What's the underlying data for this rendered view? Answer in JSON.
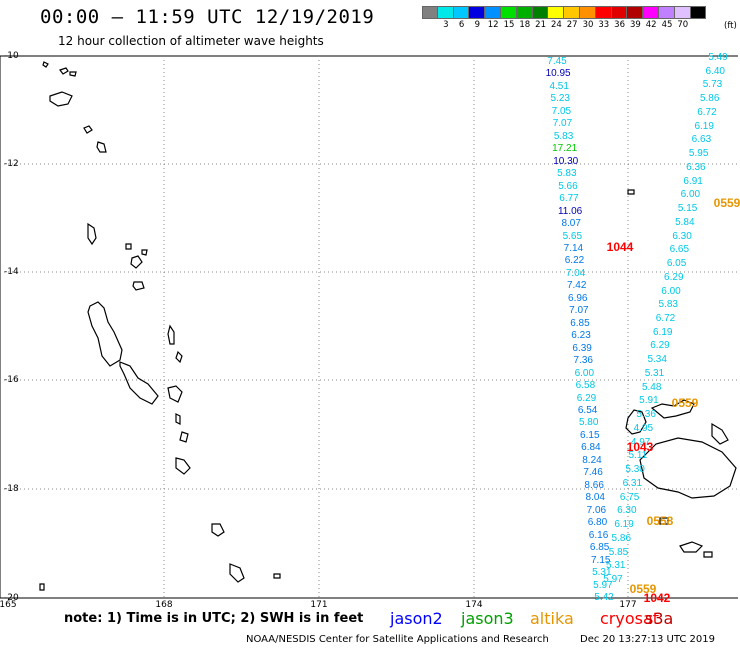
{
  "title": "00:00 — 11:59 UTC 12/19/2019",
  "subtitle": "12 hour collection of altimeter wave heights",
  "scale": {
    "colors": [
      "#808080",
      "#00e8e8",
      "#00c8ff",
      "#0000e0",
      "#0090ff",
      "#00e000",
      "#00b000",
      "#008000",
      "#ffff00",
      "#ffc800",
      "#ff9000",
      "#ff0000",
      "#e00000",
      "#b00000",
      "#ff00ff",
      "#c080ff",
      "#e0c0ff",
      "#000000"
    ],
    "ticks": [
      "3",
      "6",
      "9",
      "12",
      "15",
      "18",
      "21",
      "24",
      "27",
      "30",
      "33",
      "36",
      "39",
      "42",
      "45",
      "70"
    ],
    "unit": "(ft)"
  },
  "map": {
    "lat_labels": [
      "-10",
      "-12",
      "-14",
      "-16",
      "-18",
      "-20"
    ],
    "lon_labels": [
      "165",
      "168",
      "171",
      "174",
      "177"
    ],
    "land": "#000000"
  },
  "wave_colors": {
    "c": "#00c8e6",
    "b": "#0078e6",
    "n": "#0000b4",
    "g": "#00c800"
  },
  "wave_heights": {
    "track1": [
      [
        "7.45",
        "c"
      ],
      [
        "10.95",
        "n"
      ],
      [
        "4.51",
        "c"
      ],
      [
        "5.23",
        "c"
      ],
      [
        "7.05",
        "c"
      ],
      [
        "7.07",
        "c"
      ],
      [
        "5.83",
        "c"
      ],
      [
        "17.21",
        "g"
      ],
      [
        "10.30",
        "n"
      ],
      [
        "5.83",
        "c"
      ],
      [
        "5.66",
        "c"
      ],
      [
        "6.77",
        "c"
      ],
      [
        "11.06",
        "n"
      ],
      [
        "8.07",
        "b"
      ],
      [
        "5.65",
        "c"
      ],
      [
        "7.14",
        "b"
      ],
      [
        "6.22",
        "b"
      ],
      [
        "7.04",
        "c"
      ],
      [
        "7.42",
        "b"
      ],
      [
        "6.96",
        "b"
      ],
      [
        "7.07",
        "b"
      ],
      [
        "6.85",
        "b"
      ],
      [
        "6.23",
        "b"
      ],
      [
        "6.39",
        "b"
      ],
      [
        "7.36",
        "b"
      ],
      [
        "6.00",
        "c"
      ],
      [
        "6.58",
        "c"
      ],
      [
        "6.29",
        "c"
      ],
      [
        "6.54",
        "b"
      ],
      [
        "5.80",
        "c"
      ],
      [
        "6.15",
        "b"
      ],
      [
        "6.84",
        "b"
      ],
      [
        "8.24",
        "b"
      ],
      [
        "7.46",
        "b"
      ],
      [
        "8.66",
        "b"
      ],
      [
        "8.04",
        "b"
      ],
      [
        "7.06",
        "b"
      ],
      [
        "6.80",
        "b"
      ],
      [
        "6.16",
        "b"
      ],
      [
        "6.85",
        "b"
      ],
      [
        "7.15",
        "b"
      ],
      [
        "5.31",
        "c"
      ],
      [
        "5.97",
        "c"
      ],
      [
        "5.42",
        "c"
      ]
    ],
    "track2": [
      [
        "5.49",
        "c"
      ],
      [
        "6.40",
        "c"
      ],
      [
        "5.73",
        "c"
      ],
      [
        "5.86",
        "c"
      ],
      [
        "6.72",
        "c"
      ],
      [
        "6.19",
        "c"
      ],
      [
        "6.63",
        "c"
      ],
      [
        "5.95",
        "c"
      ],
      [
        "6.36",
        "c"
      ],
      [
        "6.91",
        "c"
      ],
      [
        "6.00",
        "c"
      ],
      [
        "5.15",
        "c"
      ],
      [
        "5.84",
        "c"
      ],
      [
        "6.30",
        "c"
      ],
      [
        "6.65",
        "c"
      ],
      [
        "6.05",
        "c"
      ],
      [
        "6.29",
        "c"
      ],
      [
        "6.00",
        "c"
      ],
      [
        "5.83",
        "c"
      ],
      [
        "6.72",
        "c"
      ],
      [
        "6.19",
        "c"
      ],
      [
        "6.29",
        "c"
      ],
      [
        "5.34",
        "c"
      ],
      [
        "5.31",
        "c"
      ],
      [
        "5.48",
        "c"
      ],
      [
        "5.91",
        "c"
      ],
      [
        "5.36",
        "c"
      ],
      [
        "4.95",
        "c"
      ],
      [
        "4.97",
        "c"
      ],
      [
        "5.11",
        "c"
      ],
      [
        "5.30",
        "c"
      ],
      [
        "6.31",
        "c"
      ],
      [
        "6.75",
        "c"
      ],
      [
        "6.30",
        "c"
      ],
      [
        "6.19",
        "c"
      ],
      [
        "5.86",
        "c"
      ],
      [
        "5.85",
        "c"
      ],
      [
        "5.31",
        "c"
      ],
      [
        "5.97",
        "c"
      ]
    ]
  },
  "time_labels": [
    {
      "text": "0559",
      "color": "#e69600"
    },
    {
      "text": "1044",
      "color": "#ff0000"
    },
    {
      "text": "0559",
      "color": "#e69600"
    },
    {
      "text": "1043",
      "color": "#ff0000"
    },
    {
      "text": "0558",
      "color": "#e69600"
    },
    {
      "text": "0559",
      "color": "#e69600"
    },
    {
      "text": "1042",
      "color": "#ff0000"
    }
  ],
  "note": "note: 1) Time is in UTC; 2) SWH is in feet",
  "satellites": [
    {
      "name": "jason2",
      "color": "#0000ff"
    },
    {
      "name": "jason3",
      "color": "#00a000"
    },
    {
      "name": "altika",
      "color": "#e69600"
    },
    {
      "name": "cryosat",
      "color": "#ff0000"
    },
    {
      "name": "s3a",
      "color": "#c00000"
    }
  ],
  "footer": {
    "left": "NOAA/NESDIS Center for Satellite Applications and Research",
    "right": "Dec 20 13:27:13 UTC 2019"
  }
}
